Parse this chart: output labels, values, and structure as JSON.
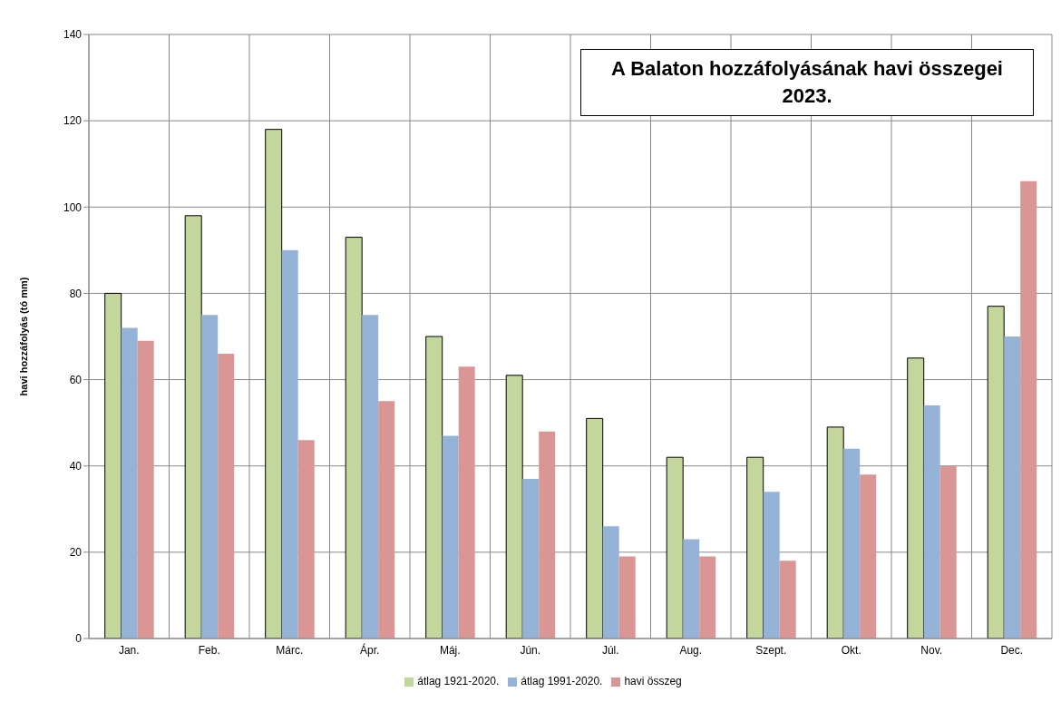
{
  "chart_data": {
    "type": "bar",
    "title": "A Balaton hozzáfolyásának havi összegei 2023.",
    "ylabel": "havi hozzáfolyás  (tó mm)",
    "categories": [
      "Jan.",
      "Feb.",
      "Márc.",
      "Ápr.",
      "Máj.",
      "Jún.",
      "Júl.",
      "Aug.",
      "Szept.",
      "Okt.",
      "Nov.",
      "Dec."
    ],
    "series": [
      {
        "name": "átlag 1921-2020.",
        "color": "#c3d69b",
        "values": [
          80,
          98,
          118,
          93,
          70,
          61,
          51,
          42,
          42,
          49,
          65,
          77
        ]
      },
      {
        "name": "átlag 1991-2020.",
        "color": "#95b3d7",
        "values": [
          72,
          75,
          90,
          75,
          47,
          37,
          26,
          23,
          34,
          44,
          54,
          70
        ]
      },
      {
        "name": "havi összeg",
        "color": "#d99694",
        "values": [
          69,
          66,
          46,
          55,
          63,
          48,
          19,
          19,
          18,
          38,
          40,
          106
        ]
      }
    ],
    "ylim": [
      0,
      140
    ],
    "yticks": [
      0,
      20,
      40,
      60,
      80,
      100,
      120,
      140
    ],
    "grid": true,
    "legend": "bottom"
  }
}
